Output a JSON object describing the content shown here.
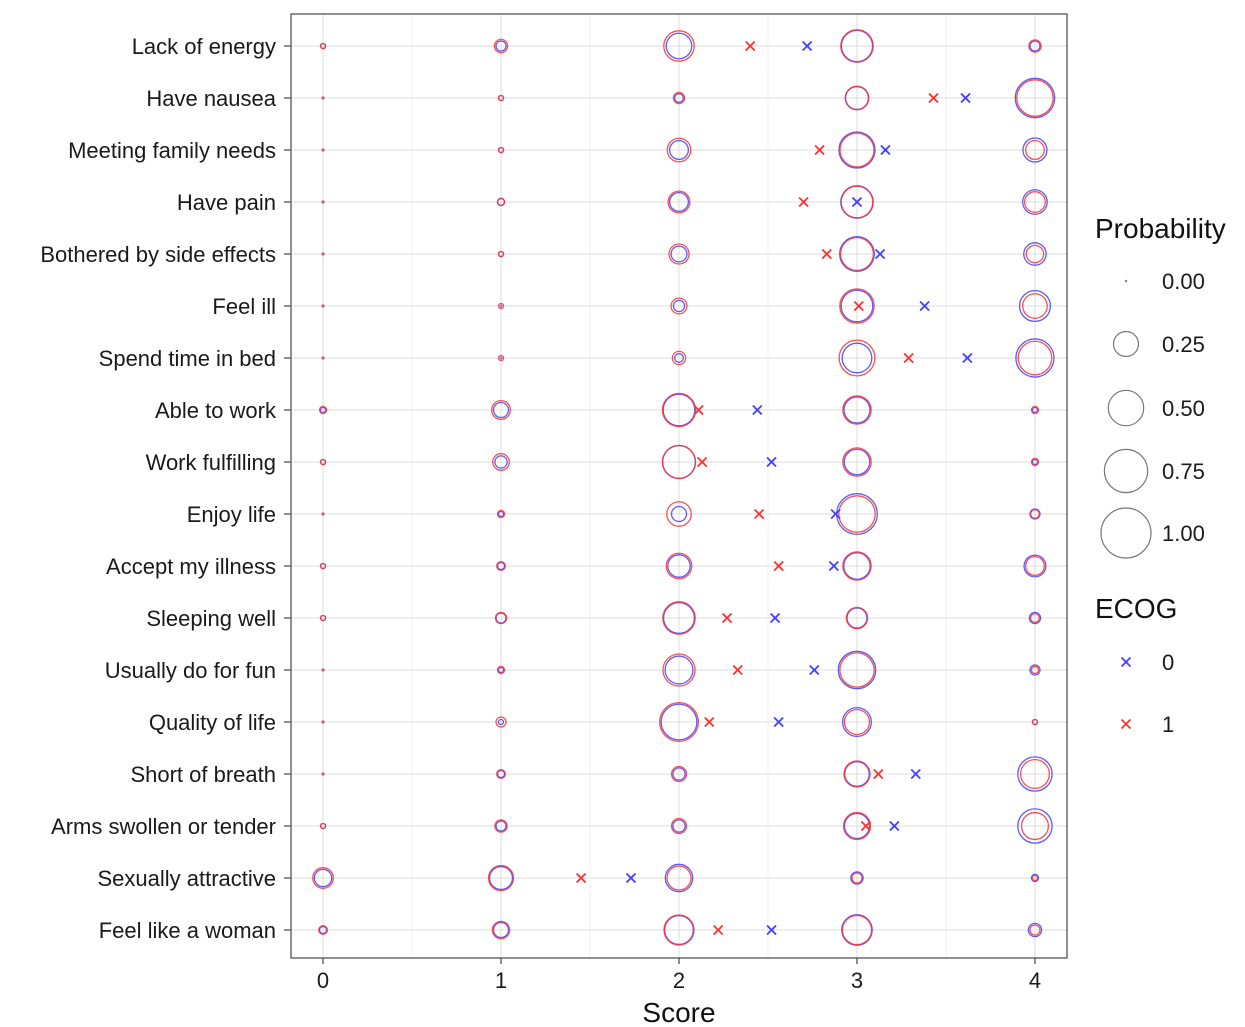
{
  "chart_data": {
    "type": "scatter",
    "xlabel": "Score",
    "ylabel": "",
    "xlim": [
      -0.18,
      4.18
    ],
    "x_ticks": [
      "0",
      "1",
      "2",
      "3",
      "4"
    ],
    "grid": true,
    "legend_position": "right",
    "size_legend": {
      "title": "Probability",
      "values": [
        "0.00",
        "0.25",
        "0.50",
        "0.75",
        "1.00"
      ]
    },
    "color_legend": {
      "title": "ECOG",
      "entries": [
        {
          "label": "0",
          "color": "#4040ff",
          "marker": "x"
        },
        {
          "label": "1",
          "color": "#ff3030",
          "marker": "x"
        }
      ]
    },
    "categories": [
      "Lack of energy",
      "Have nausea",
      "Meeting family needs",
      "Have pain",
      "Bothered by side effects",
      "Feel ill",
      "Spend time in bed",
      "Able to work",
      "Work fulfilling",
      "Enjoy life",
      "Accept my illness",
      "Sleeping well",
      "Usually do for fun",
      "Quality of life",
      "Short of breath",
      "Arms swollen or tender",
      "Sexually attractive",
      "Feel like a woman"
    ],
    "series": [
      {
        "name": "0",
        "color": "#4040ff",
        "mean_scores": [
          2.72,
          3.61,
          3.16,
          3.0,
          3.13,
          3.38,
          3.62,
          2.44,
          2.52,
          2.88,
          2.87,
          2.54,
          2.76,
          2.56,
          3.33,
          3.21,
          1.73,
          2.52
        ],
        "probabilities": [
          [
            0.01,
            0.04,
            0.26,
            0.39,
            0.04
          ],
          [
            0.0,
            0.01,
            0.03,
            0.21,
            0.62
          ],
          [
            0.0,
            0.01,
            0.14,
            0.52,
            0.23
          ],
          [
            0.0,
            0.02,
            0.14,
            0.42,
            0.24
          ],
          [
            0.0,
            0.01,
            0.1,
            0.48,
            0.2
          ],
          [
            0.0,
            0.0,
            0.05,
            0.4,
            0.38
          ],
          [
            0.0,
            0.0,
            0.03,
            0.35,
            0.58
          ],
          [
            0.01,
            0.09,
            0.4,
            0.27,
            0.01
          ],
          [
            0.01,
            0.06,
            0.43,
            0.26,
            0.01
          ],
          [
            0.0,
            0.01,
            0.09,
            0.66,
            0.04
          ],
          [
            0.01,
            0.02,
            0.2,
            0.28,
            0.19
          ],
          [
            0.01,
            0.04,
            0.38,
            0.16,
            0.05
          ],
          [
            0.0,
            0.01,
            0.31,
            0.56,
            0.04
          ],
          [
            0.0,
            0.01,
            0.51,
            0.33,
            0.01
          ],
          [
            0.0,
            0.02,
            0.06,
            0.24,
            0.47
          ],
          [
            0.01,
            0.04,
            0.06,
            0.25,
            0.47
          ],
          [
            0.12,
            0.21,
            0.3,
            0.06,
            0.02
          ],
          [
            0.02,
            0.09,
            0.33,
            0.37,
            0.07
          ]
        ]
      },
      {
        "name": "1",
        "color": "#ff3030",
        "mean_scores": [
          2.4,
          3.43,
          2.79,
          2.7,
          2.83,
          3.01,
          3.29,
          2.11,
          2.13,
          2.45,
          2.56,
          2.27,
          2.33,
          2.17,
          3.12,
          3.05,
          1.45,
          2.22
        ],
        "probabilities": [
          [
            0.01,
            0.07,
            0.37,
            0.42,
            0.06
          ],
          [
            0.0,
            0.01,
            0.05,
            0.22,
            0.53
          ],
          [
            0.0,
            0.01,
            0.22,
            0.46,
            0.14
          ],
          [
            0.0,
            0.02,
            0.19,
            0.4,
            0.17
          ],
          [
            0.0,
            0.01,
            0.16,
            0.43,
            0.12
          ],
          [
            0.0,
            0.01,
            0.1,
            0.47,
            0.24
          ],
          [
            0.0,
            0.01,
            0.07,
            0.51,
            0.45
          ],
          [
            0.02,
            0.14,
            0.44,
            0.32,
            0.02
          ],
          [
            0.01,
            0.11,
            0.44,
            0.32,
            0.02
          ],
          [
            0.0,
            0.02,
            0.24,
            0.53,
            0.03
          ],
          [
            0.01,
            0.03,
            0.26,
            0.32,
            0.14
          ],
          [
            0.01,
            0.05,
            0.42,
            0.18,
            0.03
          ],
          [
            0.0,
            0.02,
            0.41,
            0.47,
            0.02
          ],
          [
            0.0,
            0.04,
            0.6,
            0.25,
            0.01
          ],
          [
            0.0,
            0.03,
            0.09,
            0.27,
            0.33
          ],
          [
            0.01,
            0.06,
            0.09,
            0.29,
            0.29
          ],
          [
            0.17,
            0.25,
            0.23,
            0.04,
            0.01
          ],
          [
            0.03,
            0.12,
            0.36,
            0.34,
            0.04
          ]
        ]
      }
    ]
  }
}
